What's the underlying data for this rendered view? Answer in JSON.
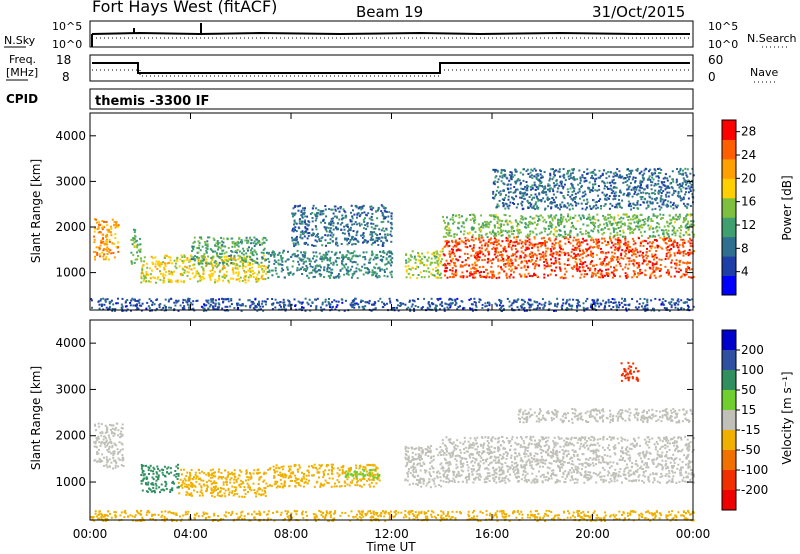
{
  "header": {
    "station": "Fort Hays West (fitACF)",
    "beam": "Beam 19",
    "date": "31/Oct/2015"
  },
  "panels": {
    "nsky": {
      "left_label": "N.Sky",
      "left_ticks": [
        "10^5",
        "10^0"
      ],
      "right_label": "N.Search",
      "right_ticks": [
        "10^5",
        "10^0"
      ]
    },
    "freq": {
      "left_label_line1": "Freq.",
      "left_label_line2": "[MHz]",
      "left_ticks": [
        "18",
        "8"
      ],
      "right_label": "Nave",
      "right_ticks": [
        "60",
        "0"
      ]
    },
    "cpid": {
      "label": "CPID",
      "value": "themis -3300 IF"
    }
  },
  "colors": {
    "power_scale": [
      "#0000ff",
      "#1f3fa8",
      "#2f6f8f",
      "#3f9f6f",
      "#7fbf3f",
      "#ffcf00",
      "#ff9f00",
      "#ff5f00",
      "#ff0000"
    ],
    "velocity_scale": [
      "#0000cc",
      "#2f4fa0",
      "#2f8f5f",
      "#6fcf2f",
      "#c0c0b8",
      "#f0b000",
      "#f07000",
      "#f03000",
      "#ee0000"
    ]
  },
  "chart_data": [
    {
      "type": "heatmap",
      "name": "power",
      "xlabel": "",
      "ylabel": "Slant Range [km]",
      "x_ticks": [
        "00:00",
        "04:00",
        "08:00",
        "12:00",
        "16:00",
        "20:00",
        "00:00"
      ],
      "xlim_hours": [
        0,
        24
      ],
      "y_ticks": [
        1000,
        2000,
        3000,
        4000
      ],
      "ylim_km": [
        180,
        4500
      ],
      "colorbar_label": "Power [dB]",
      "colorbar_ticks": [
        4,
        8,
        12,
        16,
        20,
        24,
        28
      ],
      "colorbar_range": [
        0,
        30
      ],
      "regions": [
        {
          "t": [
            0.1,
            1.1
          ],
          "range_km": [
            1300,
            2200
          ],
          "value_db": 22
        },
        {
          "t": [
            1.6,
            2.0
          ],
          "range_km": [
            1200,
            2000
          ],
          "value_db": 14
        },
        {
          "t": [
            2.0,
            7.0
          ],
          "range_km": [
            800,
            1400
          ],
          "value_db": 18
        },
        {
          "t": [
            4.0,
            7.0
          ],
          "range_km": [
            1200,
            1800
          ],
          "value_db": 12
        },
        {
          "t": [
            7.0,
            12.0
          ],
          "range_km": [
            900,
            1500
          ],
          "value_db": 10
        },
        {
          "t": [
            8.0,
            12.0
          ],
          "range_km": [
            1600,
            2500
          ],
          "value_db": 8
        },
        {
          "t": [
            12.5,
            14.0
          ],
          "range_km": [
            900,
            1500
          ],
          "value_db": 16
        },
        {
          "t": [
            14.0,
            24.0
          ],
          "range_km": [
            900,
            1800
          ],
          "value_db": 26
        },
        {
          "t": [
            14.0,
            24.0
          ],
          "range_km": [
            1800,
            2300
          ],
          "value_db": 14
        },
        {
          "t": [
            16.0,
            24.0
          ],
          "range_km": [
            2400,
            3300
          ],
          "value_db": 8
        },
        {
          "t": [
            0.0,
            24.0
          ],
          "range_km": [
            180,
            450
          ],
          "value_db": 6
        }
      ]
    },
    {
      "type": "heatmap",
      "name": "velocity",
      "xlabel": "Time UT",
      "ylabel": "Slant Range [km]",
      "x_ticks": [
        "00:00",
        "04:00",
        "08:00",
        "12:00",
        "16:00",
        "20:00",
        "00:00"
      ],
      "xlim_hours": [
        0,
        24
      ],
      "y_ticks": [
        1000,
        2000,
        3000,
        4000
      ],
      "ylim_km": [
        180,
        4500
      ],
      "colorbar_label": "Velocity [m s⁻¹]",
      "colorbar_ticks": [
        200,
        100,
        50,
        15,
        -15,
        -50,
        -100,
        -200
      ],
      "regions": [
        {
          "t": [
            0.1,
            1.3
          ],
          "range_km": [
            1300,
            2300
          ],
          "value_ms": -5
        },
        {
          "t": [
            2.0,
            3.5
          ],
          "range_km": [
            800,
            1400
          ],
          "value_ms": 60
        },
        {
          "t": [
            3.5,
            7.0
          ],
          "range_km": [
            700,
            1300
          ],
          "value_ms": -40
        },
        {
          "t": [
            7.0,
            11.5
          ],
          "range_km": [
            900,
            1400
          ],
          "value_ms": -30
        },
        {
          "t": [
            10.0,
            11.5
          ],
          "range_km": [
            1100,
            1300
          ],
          "value_ms": 30
        },
        {
          "t": [
            12.5,
            14.0
          ],
          "range_km": [
            900,
            1800
          ],
          "value_ms": -5
        },
        {
          "t": [
            14.0,
            24.0
          ],
          "range_km": [
            1000,
            2000
          ],
          "value_ms": -5
        },
        {
          "t": [
            17.0,
            24.0
          ],
          "range_km": [
            2300,
            2600
          ],
          "value_ms": -5
        },
        {
          "t": [
            21.0,
            21.8
          ],
          "range_km": [
            3200,
            3600
          ],
          "value_ms": -150
        },
        {
          "t": [
            0.0,
            24.0
          ],
          "range_km": [
            180,
            400
          ],
          "value_ms": -35
        }
      ]
    }
  ]
}
